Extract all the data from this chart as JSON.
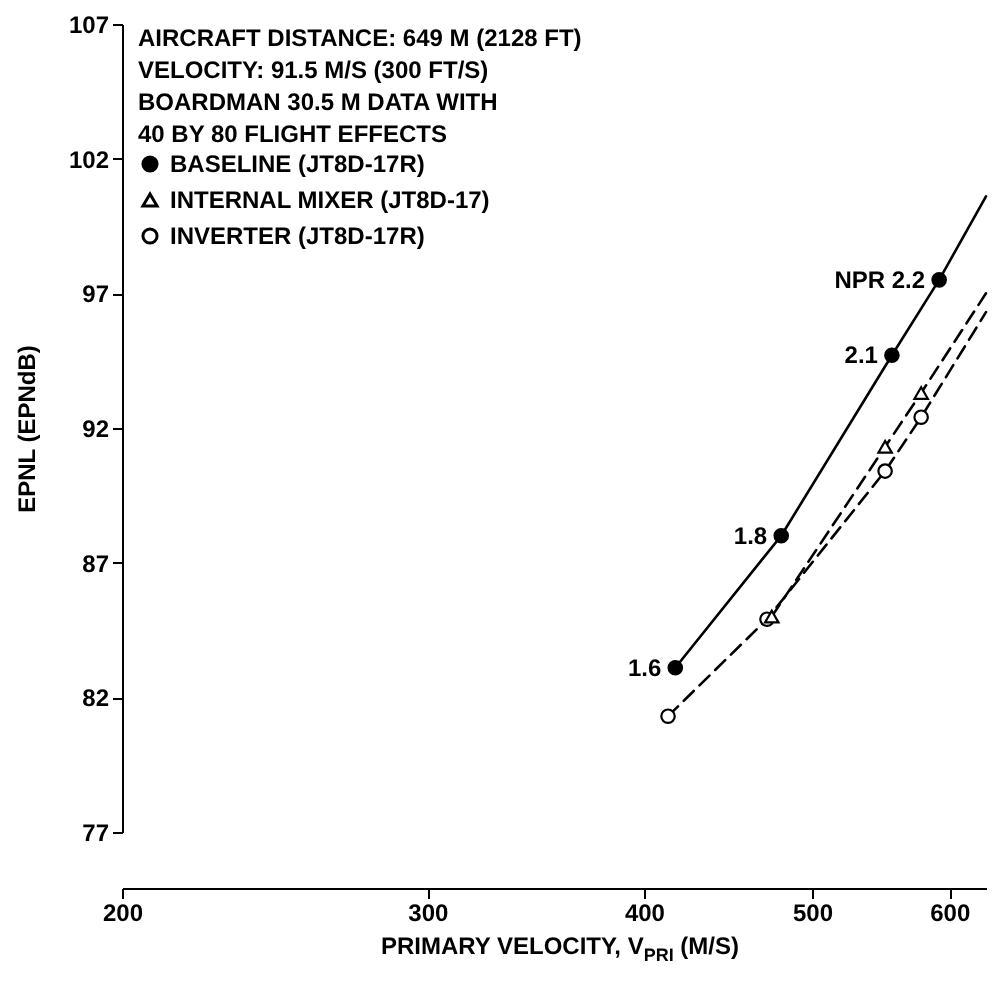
{
  "chart_data": {
    "type": "line",
    "xlabel": "PRIMARY VELOCITY, V$_{PRI}$ (M/S)",
    "ylabel": "EPNL (EPNdB)",
    "log": "x",
    "xlim": [
      200,
      630
    ],
    "xticks": [
      200,
      300,
      400,
      500,
      600
    ],
    "ylim": [
      77,
      107
    ],
    "yticks": [
      77,
      82,
      87,
      92,
      97,
      102,
      107
    ],
    "legend": "top left",
    "grid": false,
    "annotations": [
      "AIRCRAFT DISTANCE:   649 M (2128 FT)",
      "VELOCITY:   91.5 M/S (300 FT/S)",
      "BOARDMAN 30.5 M DATA WITH",
      "  40 BY 80 FLIGHT EFFECTS",
      {
        "text": "1.6",
        "x": 417,
        "y": 83.1
      },
      {
        "text": "1.8",
        "x": 480,
        "y": 88.0
      },
      {
        "text": "2.1",
        "x": 556,
        "y": 94.7
      },
      {
        "text": "NPR 2.2",
        "x": 592,
        "y": 97.5
      }
    ],
    "series": [
      {
        "name": "BASELINE (JT8D-17R)",
        "color": "#000000",
        "marker": "circle",
        "line_style": "solid",
        "x": [
          417,
          480,
          556,
          592,
          630
        ],
        "values": [
          83.1,
          88.0,
          94.7,
          97.5,
          100.6
        ]
      },
      {
        "name": "INTERNAL MIXER (JT8D-17)",
        "color": "#000000",
        "marker": "triangle",
        "line_style": "dashed",
        "x": [
          474,
          551,
          578,
          630
        ],
        "values": [
          85.0,
          91.3,
          93.3,
          97.0
        ]
      },
      {
        "name": "INVERTER (JT8D-17R)",
        "color": "#000000",
        "marker": "circle",
        "line_style": "dashed",
        "x": [
          413,
          471,
          551,
          578,
          630
        ],
        "values": [
          81.3,
          84.9,
          90.4,
          92.4,
          96.3
        ]
      }
    ]
  }
}
